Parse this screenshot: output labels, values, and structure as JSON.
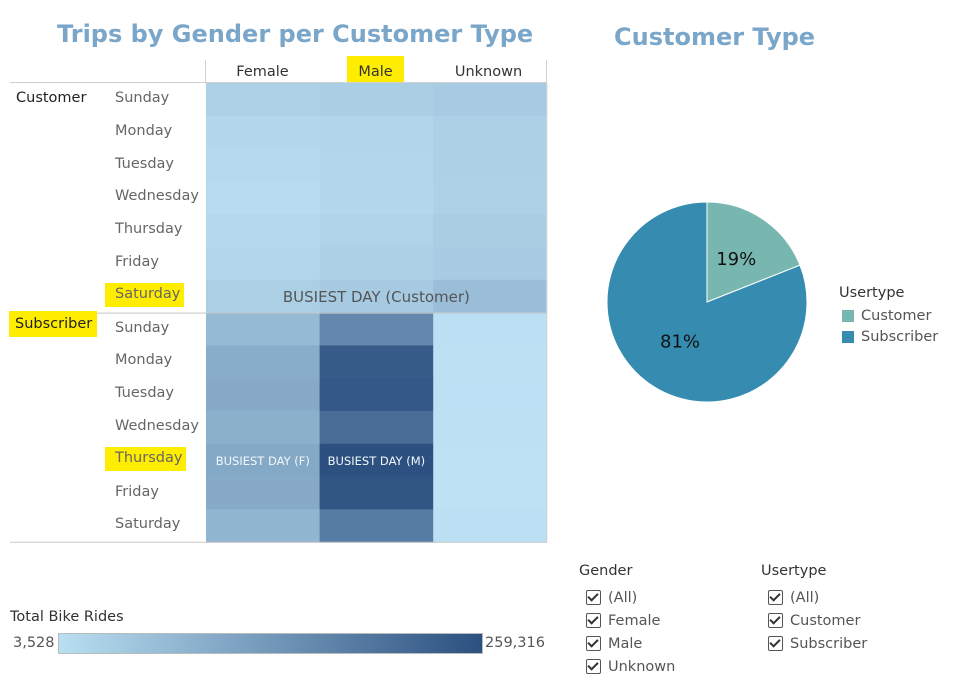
{
  "heatmap": {
    "title": "Trips by Gender per Customer Type",
    "columns": [
      "Female",
      "Male",
      "Unknown"
    ],
    "days": [
      "Sunday",
      "Monday",
      "Tuesday",
      "Wednesday",
      "Thursday",
      "Friday",
      "Saturday"
    ],
    "groups": [
      "Customer",
      "Subscriber"
    ],
    "annotations": {
      "customer_busiest": "BUSIEST DAY (Customer)",
      "female_busiest": "BUSIEST DAY (F)",
      "male_busiest": "BUSIEST DAY (M)"
    },
    "color_legend": {
      "title": "Total Bike Rides",
      "min_label": "3,528",
      "max_label": "259,316",
      "min_color": "#b9dff2",
      "max_color": "#2c5080"
    }
  },
  "pie": {
    "title": "Customer Type",
    "legend_title": "Usertype"
  },
  "filters": {
    "gender": {
      "title": "Gender",
      "options": [
        "(All)",
        "Female",
        "Male",
        "Unknown"
      ]
    },
    "usertype": {
      "title": "Usertype",
      "options": [
        "(All)",
        "Customer",
        "Subscriber"
      ]
    }
  },
  "chart_data": [
    {
      "type": "heatmap",
      "title": "Trips by Gender per Customer Type",
      "x": [
        "Female",
        "Male",
        "Unknown"
      ],
      "y_groups": [
        "Customer",
        "Subscriber"
      ],
      "y": [
        "Sunday",
        "Monday",
        "Tuesday",
        "Wednesday",
        "Thursday",
        "Friday",
        "Saturday"
      ],
      "value_range": [
        3528,
        259316
      ],
      "values": {
        "Customer": [
          [
            22000,
            27000,
            32000
          ],
          [
            14000,
            17000,
            24000
          ],
          [
            12000,
            16000,
            24000
          ],
          [
            10000,
            15000,
            22000
          ],
          [
            13000,
            20000,
            28000
          ],
          [
            16000,
            24000,
            31000
          ],
          [
            26000,
            34000,
            52000
          ]
        ],
        "Subscriber": [
          [
            60000,
            148000,
            5000
          ],
          [
            82000,
            235000,
            4200
          ],
          [
            86000,
            242000,
            3900
          ],
          [
            76000,
            200000,
            4200
          ],
          [
            88000,
            259316,
            3600
          ],
          [
            86000,
            248000,
            3528
          ],
          [
            66000,
            172000,
            5000
          ]
        ]
      }
    },
    {
      "type": "pie",
      "title": "Customer Type",
      "legend_title": "Usertype",
      "categories": [
        "Customer",
        "Subscriber"
      ],
      "values": [
        19,
        81
      ],
      "labels": [
        "19%",
        "81%"
      ],
      "colors": [
        "#77b7b0",
        "#358cb0"
      ],
      "legend_position": "right"
    }
  ]
}
